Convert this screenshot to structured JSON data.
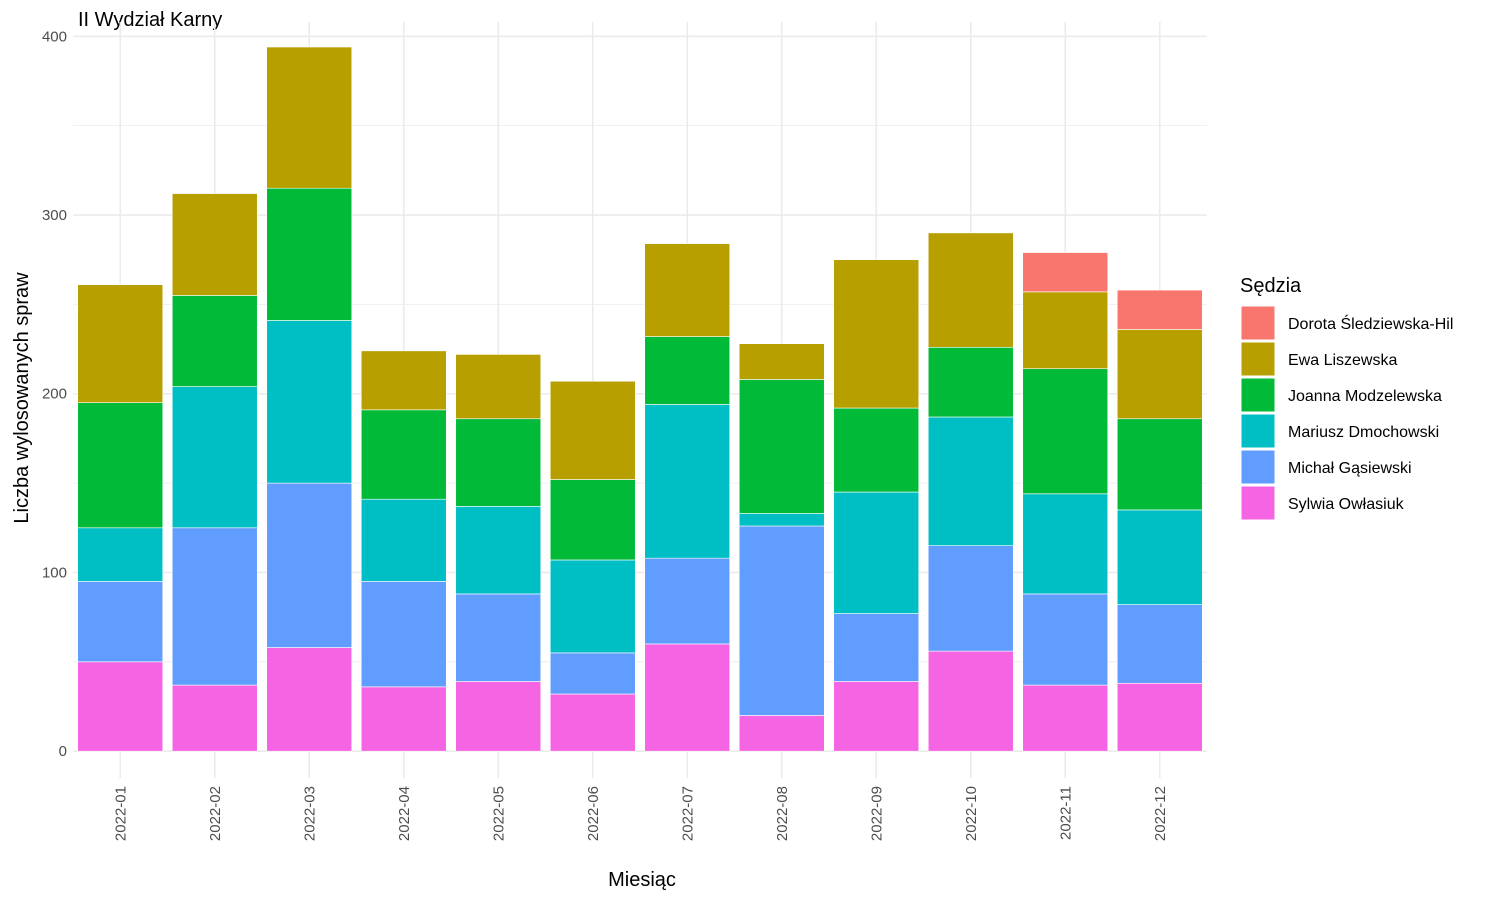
{
  "chart_data": {
    "type": "bar",
    "stacked": true,
    "title": "II Wydział Karny",
    "xlabel": "Miesiąc",
    "ylabel": "Liczba wylosowanych spraw",
    "ylim": [
      -15,
      408
    ],
    "yticks": [
      0,
      100,
      200,
      300,
      400
    ],
    "grid": true,
    "legend_position": "right",
    "legend_title": "Sędzia",
    "categories": [
      "2022-01",
      "2022-02",
      "2022-03",
      "2022-04",
      "2022-05",
      "2022-06",
      "2022-07",
      "2022-08",
      "2022-09",
      "2022-10",
      "2022-11",
      "2022-12"
    ],
    "series": [
      {
        "name": "Sylwia Owłasiuk",
        "color": "#F564E3",
        "values": [
          50,
          37,
          58,
          36,
          39,
          32,
          60,
          20,
          39,
          56,
          37,
          38
        ]
      },
      {
        "name": "Michał Gąsiewski",
        "color": "#619CFF",
        "values": [
          45,
          88,
          92,
          59,
          49,
          23,
          48,
          106,
          38,
          59,
          51,
          44
        ]
      },
      {
        "name": "Mariusz Dmochowski",
        "color": "#00BFC4",
        "values": [
          30,
          79,
          91,
          46,
          49,
          52,
          86,
          7,
          68,
          72,
          56,
          53
        ]
      },
      {
        "name": "Joanna Modzelewska",
        "color": "#00BA38",
        "values": [
          70,
          51,
          74,
          50,
          49,
          45,
          38,
          75,
          47,
          39,
          70,
          51
        ]
      },
      {
        "name": "Ewa Liszewska",
        "color": "#B79F00",
        "values": [
          66,
          57,
          79,
          33,
          36,
          55,
          52,
          20,
          83,
          64,
          43,
          50
        ]
      },
      {
        "name": "Dorota Śledziewska-Hil",
        "color": "#F8766D",
        "values": [
          0,
          0,
          0,
          0,
          0,
          0,
          0,
          0,
          0,
          0,
          22,
          22
        ]
      }
    ],
    "legend_order": [
      "Dorota Śledziewska-Hil",
      "Ewa Liszewska",
      "Joanna Modzelewska",
      "Mariusz Dmochowski",
      "Michał Gąsiewski",
      "Sylwia Owłasiuk"
    ],
    "colors": {
      "grid": "#EBEBEB",
      "tick_text": "#4D4D4D"
    }
  }
}
